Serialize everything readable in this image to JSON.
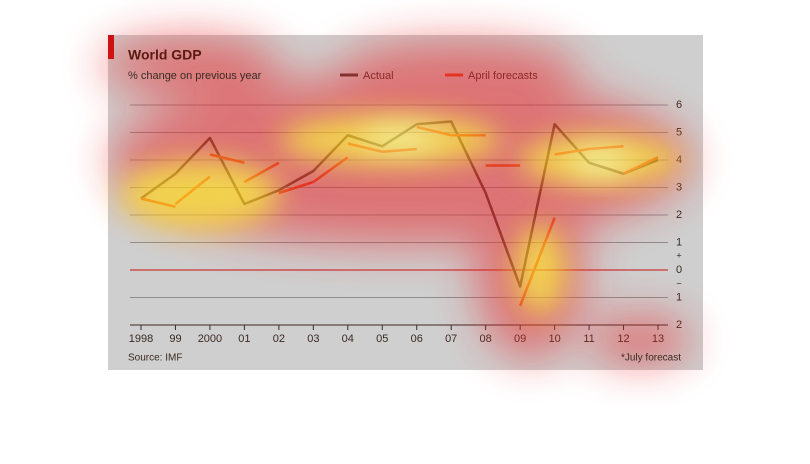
{
  "chart_data": {
    "type": "line",
    "title": "World GDP",
    "subtitle": "% change on previous year",
    "source": "Source: IMF",
    "footnote": "*July forecast",
    "categories": [
      "1998",
      "99",
      "2000",
      "01",
      "02",
      "03",
      "04",
      "05",
      "06",
      "07",
      "08",
      "09",
      "10",
      "11",
      "12",
      "13"
    ],
    "sign_labels": [
      "+",
      "−"
    ],
    "ylim": [
      -2,
      6
    ],
    "yticks": [
      {
        "value": -2,
        "label": "2"
      },
      {
        "value": -1,
        "label": "1"
      },
      0,
      1,
      2,
      3,
      4,
      5,
      6
    ],
    "grid": true,
    "series": [
      {
        "name": "Actual",
        "color": "#4a3a30",
        "values": [
          2.6,
          3.5,
          4.8,
          2.4,
          2.9,
          3.6,
          4.9,
          4.5,
          5.3,
          5.4,
          2.8,
          -0.6,
          5.3,
          3.9,
          3.5,
          4.0
        ]
      },
      {
        "name": "April forecasts",
        "color": "#e0401c",
        "segments": [
          [
            2.6,
            2.3,
            null,
            null,
            null,
            null,
            null,
            null,
            null,
            null,
            null,
            null,
            null,
            null,
            null,
            null
          ],
          [
            null,
            2.4,
            3.4,
            null,
            null,
            null,
            null,
            null,
            null,
            null,
            null,
            null,
            null,
            null,
            null,
            null
          ],
          [
            null,
            null,
            4.2,
            3.9,
            null,
            null,
            null,
            null,
            null,
            null,
            null,
            null,
            null,
            null,
            null,
            null
          ],
          [
            null,
            null,
            null,
            3.2,
            3.9,
            null,
            null,
            null,
            null,
            null,
            null,
            null,
            null,
            null,
            null,
            null
          ],
          [
            null,
            null,
            null,
            null,
            2.8,
            3.2,
            null,
            null,
            null,
            null,
            null,
            null,
            null,
            null,
            null,
            null
          ],
          [
            null,
            null,
            null,
            null,
            null,
            3.2,
            4.1,
            null,
            null,
            null,
            null,
            null,
            null,
            null,
            null,
            null
          ],
          [
            null,
            null,
            null,
            null,
            null,
            null,
            4.6,
            4.3,
            null,
            null,
            null,
            null,
            null,
            null,
            null,
            null
          ],
          [
            null,
            null,
            null,
            null,
            null,
            null,
            null,
            4.3,
            4.4,
            null,
            null,
            null,
            null,
            null,
            null,
            null
          ],
          [
            null,
            null,
            null,
            null,
            null,
            null,
            null,
            null,
            5.2,
            4.9,
            null,
            null,
            null,
            null,
            null,
            null
          ],
          [
            null,
            null,
            null,
            null,
            null,
            null,
            null,
            null,
            null,
            4.9,
            4.9,
            null,
            null,
            null,
            null,
            null
          ],
          [
            null,
            null,
            null,
            null,
            null,
            null,
            null,
            null,
            null,
            null,
            3.8,
            3.8,
            null,
            null,
            null,
            null
          ],
          [
            null,
            null,
            null,
            null,
            null,
            null,
            null,
            null,
            null,
            null,
            null,
            -1.3,
            1.9,
            null,
            null,
            null
          ],
          [
            null,
            null,
            null,
            null,
            null,
            null,
            null,
            null,
            null,
            null,
            null,
            null,
            4.2,
            4.4,
            null,
            null
          ],
          [
            null,
            null,
            null,
            null,
            null,
            null,
            null,
            null,
            null,
            null,
            null,
            null,
            null,
            4.4,
            4.5,
            null
          ],
          [
            null,
            null,
            null,
            null,
            null,
            null,
            null,
            null,
            null,
            null,
            null,
            null,
            null,
            null,
            3.5,
            4.1
          ]
        ]
      }
    ]
  }
}
